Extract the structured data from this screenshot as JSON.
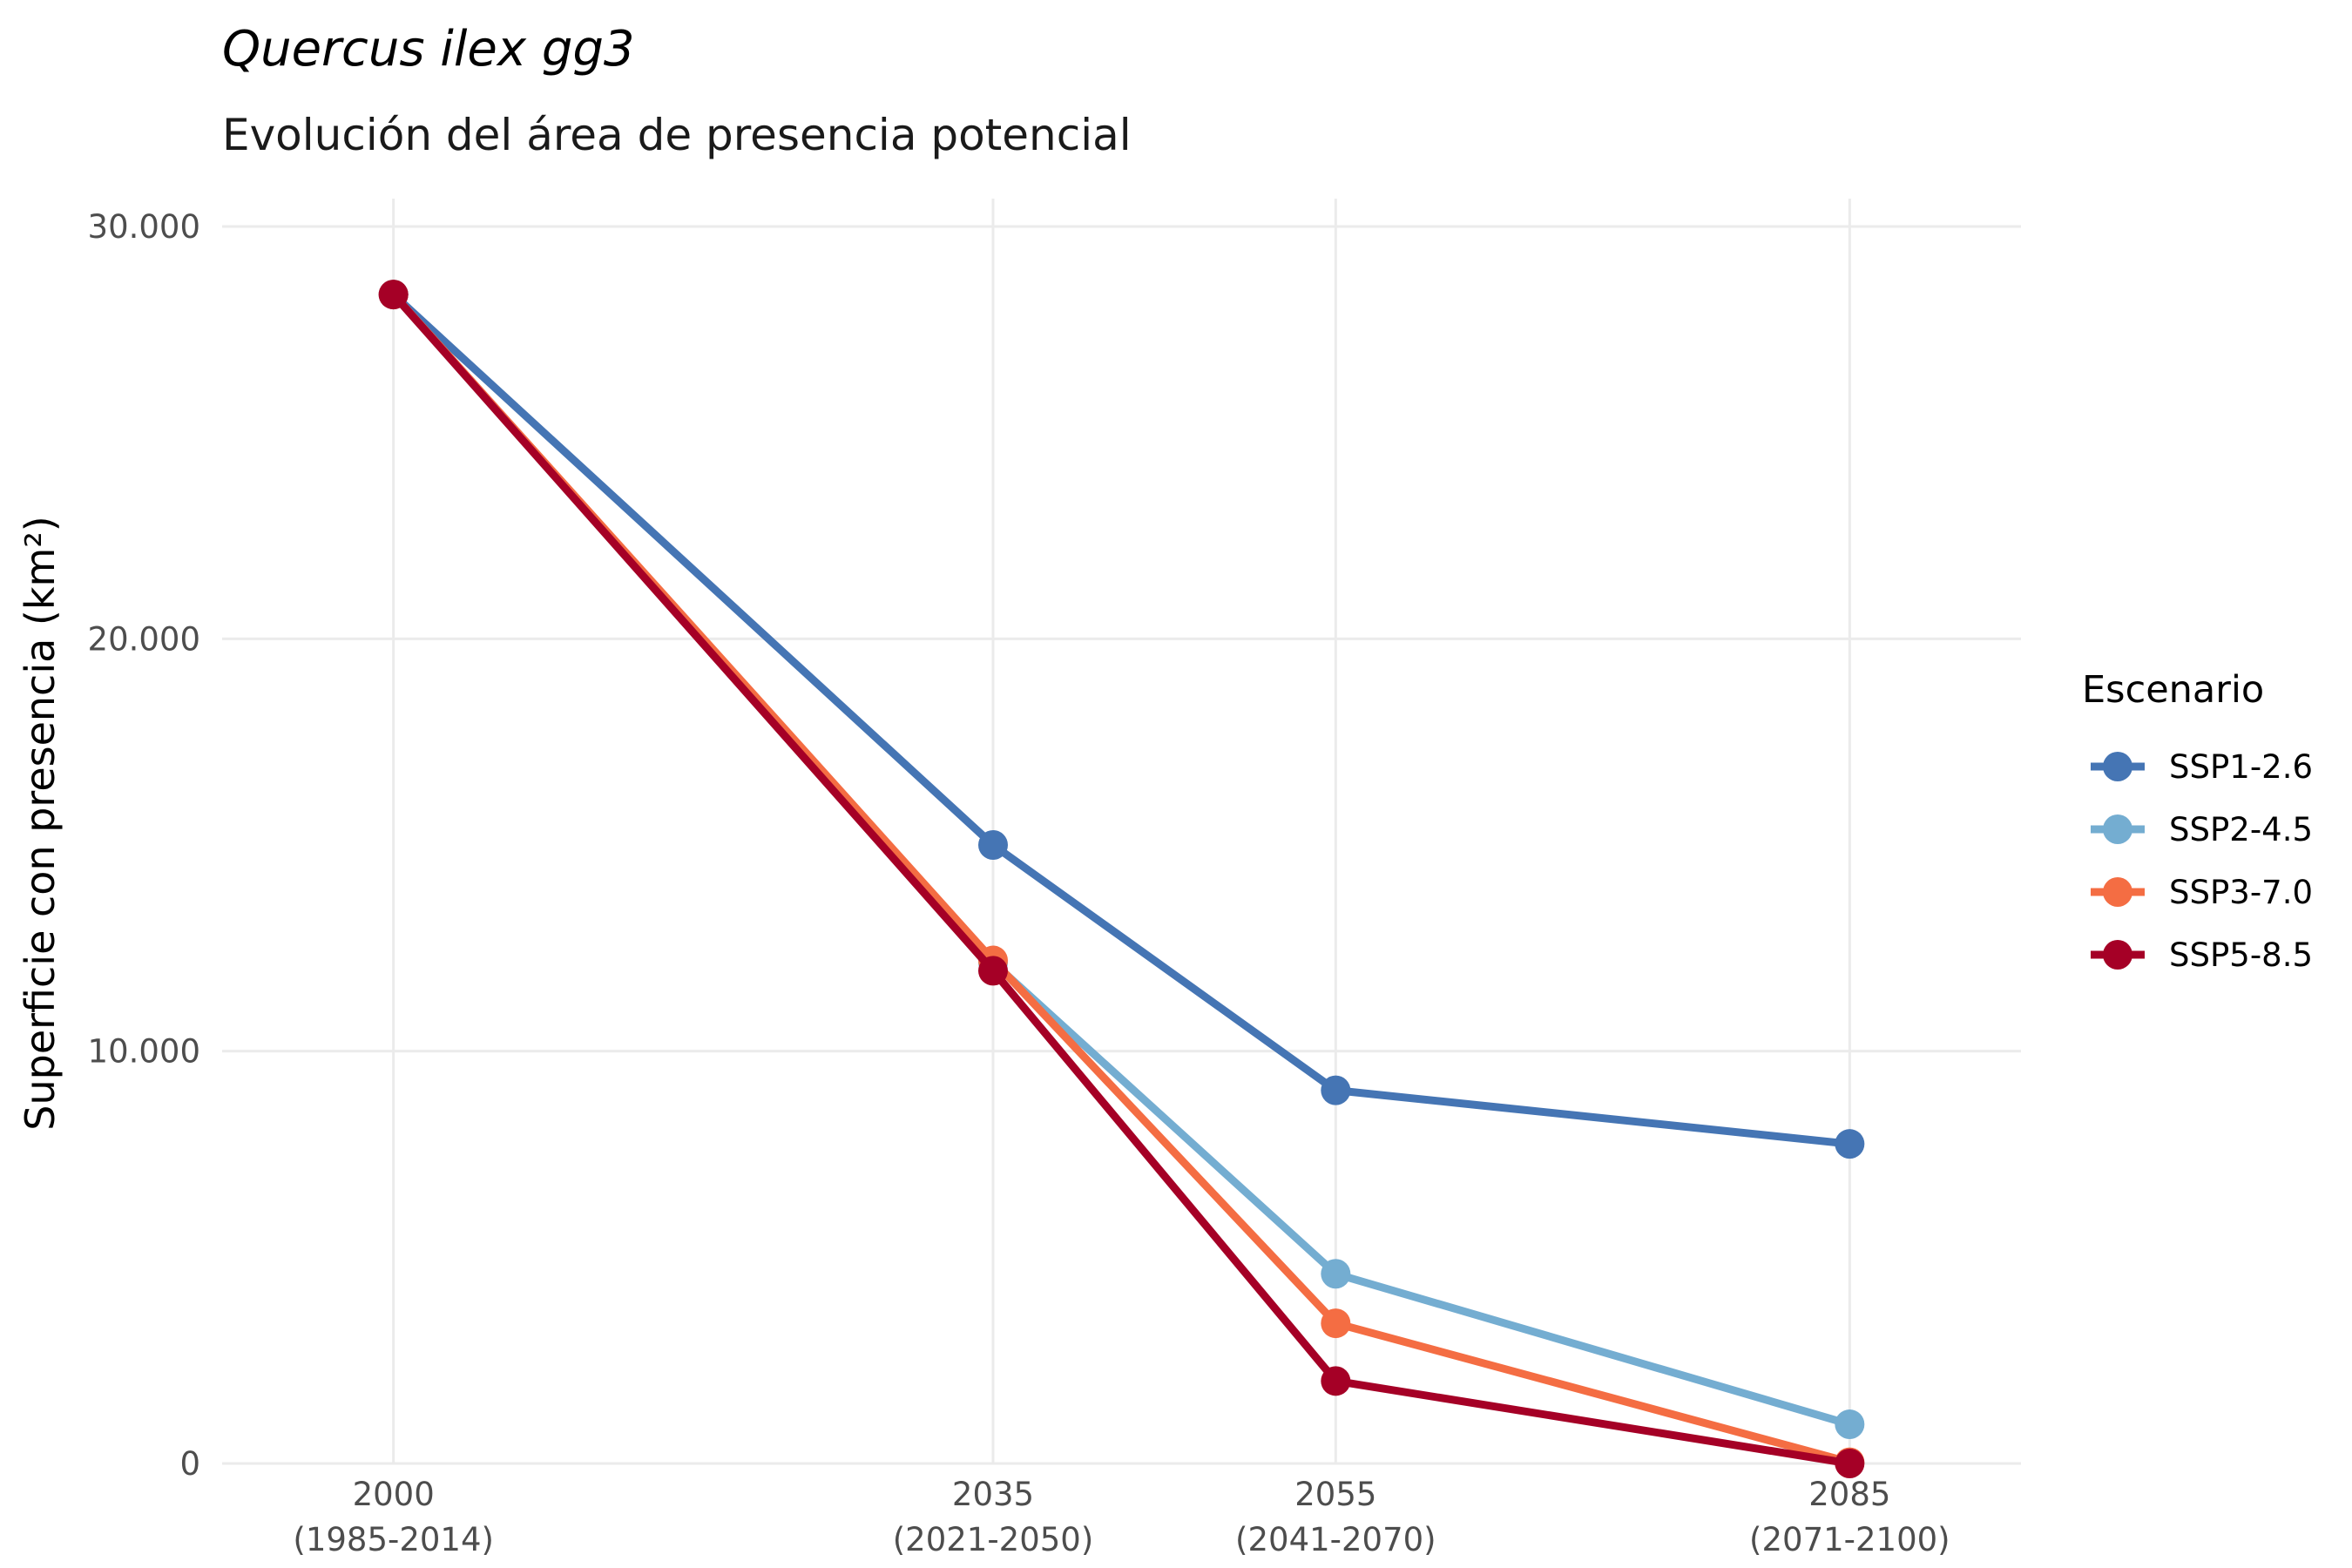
{
  "chart_data": {
    "type": "line",
    "title": "Quercus ilex gg3",
    "subtitle": "Evolución del área de presencia potencial",
    "xlabel": "",
    "ylabel": "Superficie con presencia (km²)",
    "x": [
      2000,
      2035,
      2055,
      2085
    ],
    "x_tick_labels": [
      {
        "year": "2000",
        "period": "(1985-2014)"
      },
      {
        "year": "2035",
        "period": "(2021-2050)"
      },
      {
        "year": "2055",
        "period": "(2041-2070)"
      },
      {
        "year": "2085",
        "period": "(2071-2100)"
      }
    ],
    "xlim": [
      1990,
      2095
    ],
    "ylim": [
      0,
      30000
    ],
    "y_ticks": [
      0,
      10000,
      20000,
      30000
    ],
    "y_tick_labels": [
      "0",
      "10.000",
      "20.000",
      "30.000"
    ],
    "grid": true,
    "legend_title": "Escenario",
    "legend_position": "right",
    "series": [
      {
        "name": "SSP1-2.6",
        "color": "#4575B4",
        "values": [
          28350,
          15000,
          9050,
          7750
        ]
      },
      {
        "name": "SSP2-4.5",
        "color": "#74ADD1",
        "values": [
          28350,
          12150,
          4600,
          950
        ]
      },
      {
        "name": "SSP3-7.0",
        "color": "#F46D43",
        "values": [
          28350,
          12200,
          3400,
          30
        ]
      },
      {
        "name": "SSP5-8.5",
        "color": "#A50026",
        "values": [
          28350,
          11950,
          2000,
          0
        ]
      }
    ]
  }
}
